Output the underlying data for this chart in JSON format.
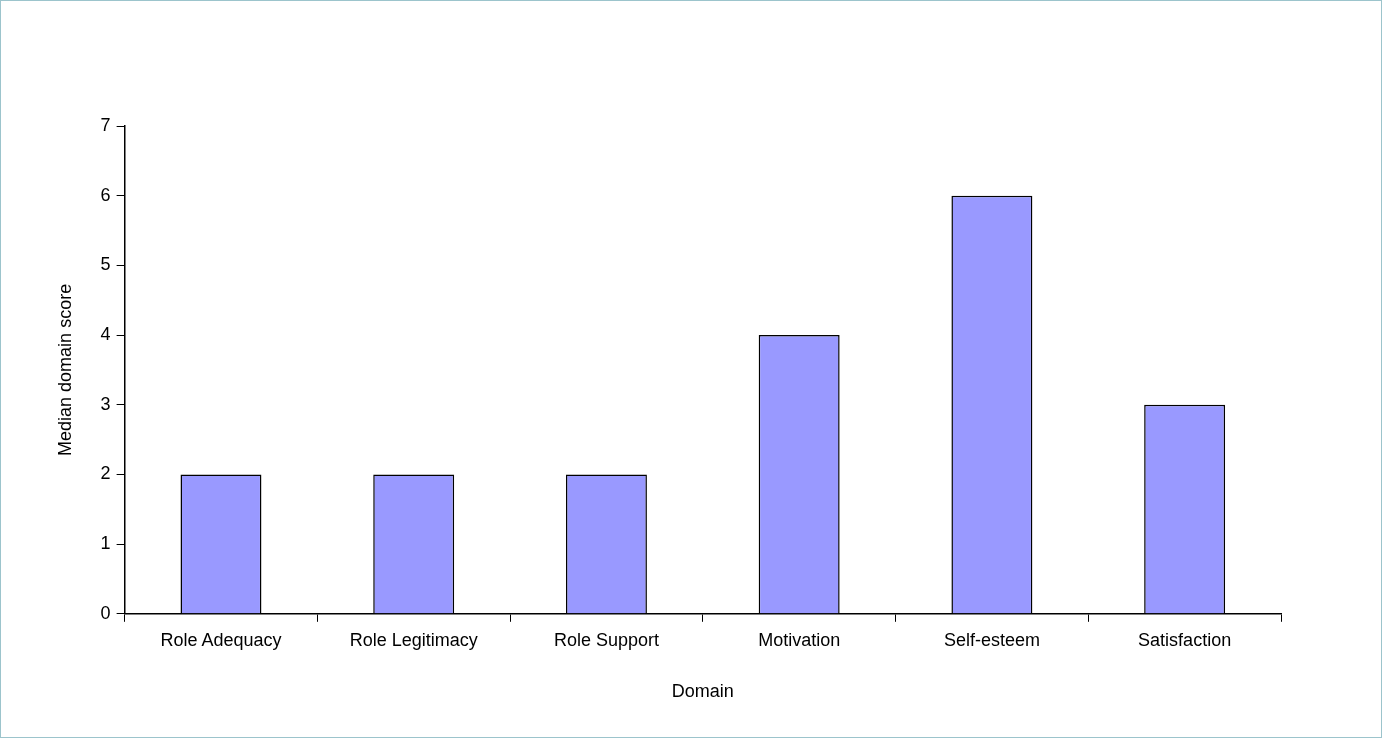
{
  "chart_data": {
    "type": "bar",
    "xlabel": "Domain",
    "ylabel": "Median domain score",
    "categories": [
      "Role Adequacy",
      "Role Legitimacy",
      "Role Support",
      "Motivation",
      "Self-esteem",
      "Satisfaction"
    ],
    "values": [
      2,
      2,
      2,
      4,
      6,
      3
    ],
    "color": "#9999ff",
    "ylim": [
      0,
      7
    ],
    "yticks": [
      0,
      1,
      2,
      3,
      4,
      5,
      6,
      7
    ],
    "grid": false,
    "legend": false
  }
}
